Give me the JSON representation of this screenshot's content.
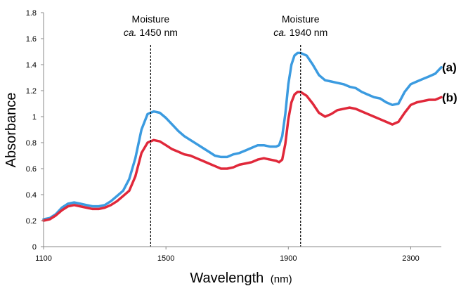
{
  "chart_data": {
    "type": "line",
    "xlabel": "Wavelength",
    "xlabel_unit": "(nm)",
    "ylabel": "Absorbance",
    "xlim": [
      1100,
      2400
    ],
    "ylim": [
      0,
      1.8
    ],
    "xticks": [
      1100,
      1500,
      1900,
      2300
    ],
    "xtick_labels": [
      "1100",
      "1500",
      "1900",
      "2300"
    ],
    "yticks": [
      0,
      0.2,
      0.4,
      0.6,
      0.8,
      1,
      1.2,
      1.4,
      1.6,
      1.8
    ],
    "ytick_labels": [
      "0",
      "0.2",
      "0.4",
      "0.6",
      "0.8",
      "1",
      "1.2",
      "1.4",
      "1.6",
      "1.8"
    ],
    "grid": false,
    "annotations": [
      {
        "x": 1450,
        "line1": "Moisture",
        "line2_italic": "ca.",
        "line2_rest": " 1450 nm"
      },
      {
        "x": 1940,
        "line1": "Moisture",
        "line2_italic": "ca.",
        "line2_rest": " 1940 nm"
      }
    ],
    "series": [
      {
        "name": "(a)",
        "color": "#3b9be0",
        "x": [
          1100,
          1120,
          1140,
          1160,
          1180,
          1200,
          1220,
          1240,
          1260,
          1280,
          1300,
          1320,
          1340,
          1360,
          1380,
          1400,
          1420,
          1440,
          1460,
          1480,
          1500,
          1520,
          1540,
          1560,
          1580,
          1600,
          1620,
          1640,
          1660,
          1680,
          1700,
          1720,
          1740,
          1760,
          1780,
          1800,
          1820,
          1840,
          1860,
          1870,
          1880,
          1890,
          1900,
          1910,
          1920,
          1930,
          1940,
          1960,
          1980,
          2000,
          2020,
          2040,
          2060,
          2080,
          2100,
          2120,
          2140,
          2160,
          2180,
          2200,
          2220,
          2240,
          2260,
          2280,
          2300,
          2320,
          2340,
          2360,
          2380,
          2400
        ],
        "y": [
          0.21,
          0.22,
          0.25,
          0.3,
          0.33,
          0.34,
          0.33,
          0.32,
          0.31,
          0.31,
          0.32,
          0.35,
          0.39,
          0.43,
          0.52,
          0.68,
          0.9,
          1.02,
          1.04,
          1.03,
          0.99,
          0.94,
          0.89,
          0.85,
          0.82,
          0.79,
          0.76,
          0.73,
          0.7,
          0.69,
          0.69,
          0.71,
          0.72,
          0.74,
          0.76,
          0.78,
          0.78,
          0.77,
          0.77,
          0.78,
          0.85,
          1.02,
          1.25,
          1.4,
          1.47,
          1.49,
          1.49,
          1.47,
          1.4,
          1.32,
          1.28,
          1.27,
          1.26,
          1.25,
          1.23,
          1.22,
          1.19,
          1.17,
          1.15,
          1.14,
          1.11,
          1.09,
          1.1,
          1.19,
          1.25,
          1.27,
          1.29,
          1.31,
          1.33,
          1.38
        ]
      },
      {
        "name": "(b)",
        "color": "#e0283a",
        "x": [
          1100,
          1120,
          1140,
          1160,
          1180,
          1200,
          1220,
          1240,
          1260,
          1280,
          1300,
          1320,
          1340,
          1360,
          1380,
          1400,
          1420,
          1440,
          1460,
          1480,
          1500,
          1520,
          1540,
          1560,
          1580,
          1600,
          1620,
          1640,
          1660,
          1680,
          1700,
          1720,
          1740,
          1760,
          1780,
          1800,
          1820,
          1840,
          1860,
          1870,
          1880,
          1890,
          1900,
          1910,
          1920,
          1930,
          1940,
          1960,
          1980,
          2000,
          2020,
          2040,
          2060,
          2080,
          2100,
          2120,
          2140,
          2160,
          2180,
          2200,
          2220,
          2240,
          2260,
          2280,
          2300,
          2320,
          2340,
          2360,
          2380,
          2400
        ],
        "y": [
          0.2,
          0.21,
          0.24,
          0.28,
          0.31,
          0.32,
          0.31,
          0.3,
          0.29,
          0.29,
          0.3,
          0.32,
          0.35,
          0.39,
          0.43,
          0.54,
          0.72,
          0.8,
          0.82,
          0.81,
          0.78,
          0.75,
          0.73,
          0.71,
          0.7,
          0.68,
          0.66,
          0.64,
          0.62,
          0.6,
          0.6,
          0.61,
          0.63,
          0.64,
          0.65,
          0.67,
          0.68,
          0.67,
          0.66,
          0.65,
          0.67,
          0.79,
          0.98,
          1.11,
          1.17,
          1.19,
          1.19,
          1.16,
          1.1,
          1.03,
          1.0,
          1.02,
          1.05,
          1.06,
          1.07,
          1.06,
          1.04,
          1.02,
          1.0,
          0.98,
          0.96,
          0.94,
          0.96,
          1.03,
          1.09,
          1.11,
          1.12,
          1.13,
          1.13,
          1.15
        ]
      }
    ]
  }
}
